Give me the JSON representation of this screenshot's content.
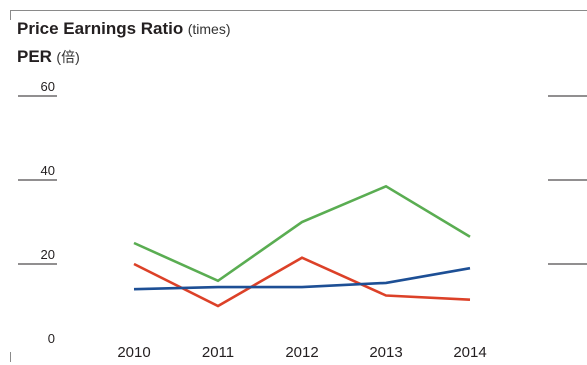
{
  "header": {
    "title_en": "Price Earnings Ratio",
    "title_en_unit": "(times)",
    "title_jp": "PER",
    "title_jp_unit": "(倍)"
  },
  "chart_data": {
    "type": "line",
    "title": "Price Earnings Ratio (times)",
    "subtitle": "PER (倍)",
    "xlabel": "",
    "ylabel": "",
    "x": [
      "2010",
      "2011",
      "2012",
      "2013",
      "2014"
    ],
    "yticks": [
      "0",
      "20",
      "40",
      "60"
    ],
    "ylim": [
      0,
      60
    ],
    "grid": false,
    "series": [
      {
        "color": "#5aad52",
        "values": [
          25,
          16,
          30,
          38.5,
          26.5
        ]
      },
      {
        "color": "#dc4128",
        "values": [
          20,
          10,
          21.5,
          12.5,
          11.5
        ]
      },
      {
        "color": "#1d4f95",
        "values": [
          14,
          14.5,
          14.5,
          15.5,
          19
        ]
      }
    ]
  }
}
